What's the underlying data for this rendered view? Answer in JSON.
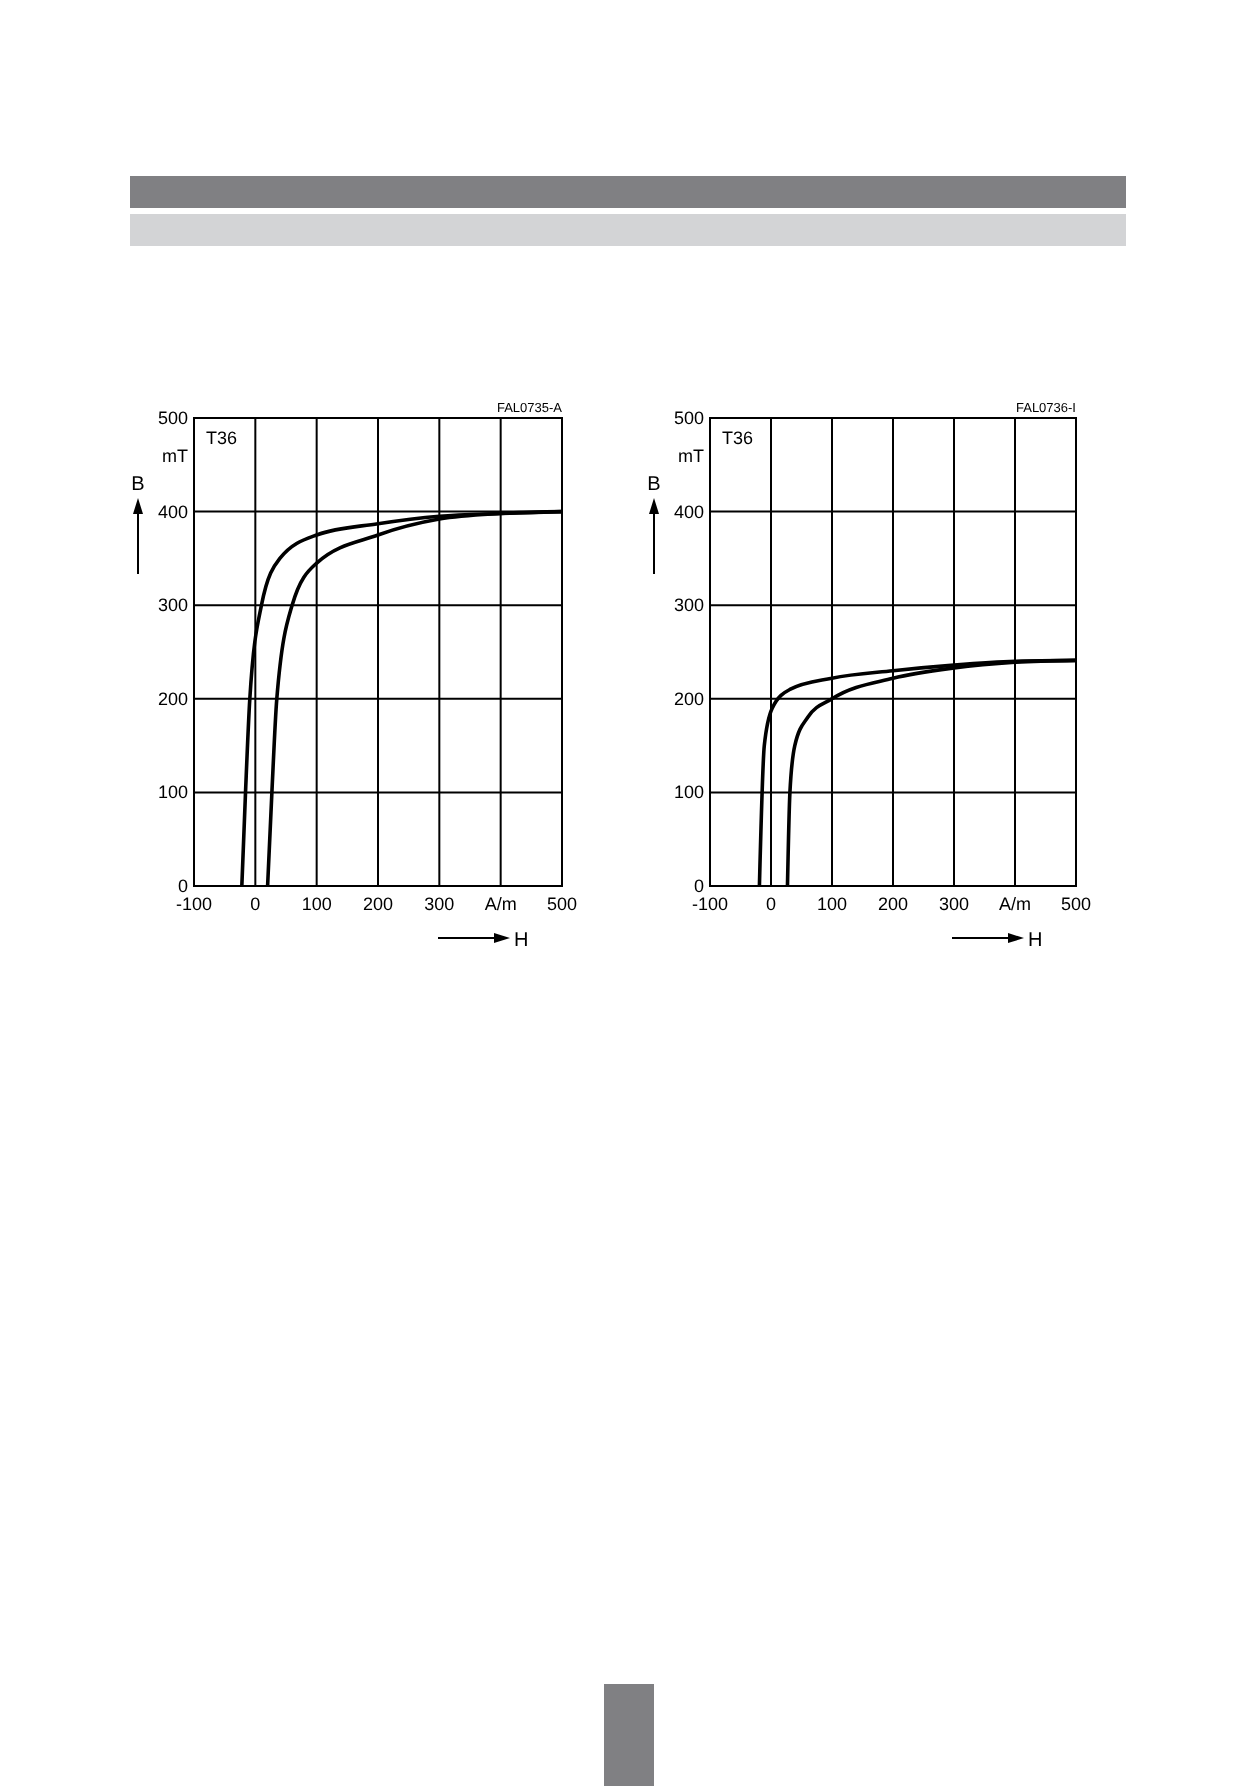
{
  "chart_data": [
    {
      "type": "line",
      "xlabel": "H",
      "ylabel": "B",
      "xlim": [
        -100,
        500
      ],
      "ylim": [
        0,
        500
      ],
      "xticks": [
        -100,
        0,
        100,
        200,
        300,
        {
          "value": 400,
          "label": "A/m"
        },
        500
      ],
      "yticks": [
        0,
        100,
        200,
        300,
        400,
        500
      ],
      "grid": true,
      "marker": "none",
      "line_style": "solid",
      "annotations": [
        "T36",
        "FAL0735-A",
        "mT"
      ],
      "series": [
        {
          "color": "#000000",
          "x": [
            -22,
            -16,
            -9,
            10,
            40,
            100,
            200,
            300,
            400,
            500
          ],
          "values": [
            0,
            100,
            200,
            300,
            350,
            375,
            387,
            395,
            398,
            400
          ]
        },
        {
          "color": "#000000",
          "x": [
            20,
            27,
            35,
            60,
            100,
            200,
            300,
            400,
            500
          ],
          "values": [
            0,
            100,
            200,
            300,
            345,
            375,
            392,
            398,
            400
          ]
        }
      ]
    },
    {
      "type": "line",
      "xlabel": "H",
      "ylabel": "B",
      "xlim": [
        -100,
        500
      ],
      "ylim": [
        0,
        500
      ],
      "xticks": [
        -100,
        0,
        100,
        200,
        300,
        {
          "value": 400,
          "label": "A/m"
        },
        500
      ],
      "yticks": [
        0,
        100,
        200,
        300,
        400,
        500
      ],
      "grid": true,
      "marker": "none",
      "line_style": "solid",
      "annotations": [
        "T36",
        "FAL0736-I",
        "mT"
      ],
      "series": [
        {
          "color": "#000000",
          "x": [
            -19,
            -11,
            2,
            31,
            100,
            200,
            300,
            400,
            500
          ],
          "values": [
            0,
            150,
            190,
            210,
            222,
            230,
            236,
            240,
            241
          ]
        },
        {
          "color": "#000000",
          "x": [
            27,
            31,
            39,
            60,
            100,
            200,
            300,
            400,
            500
          ],
          "values": [
            0,
            100,
            150,
            180,
            200,
            222,
            233,
            239,
            241
          ]
        }
      ]
    }
  ]
}
